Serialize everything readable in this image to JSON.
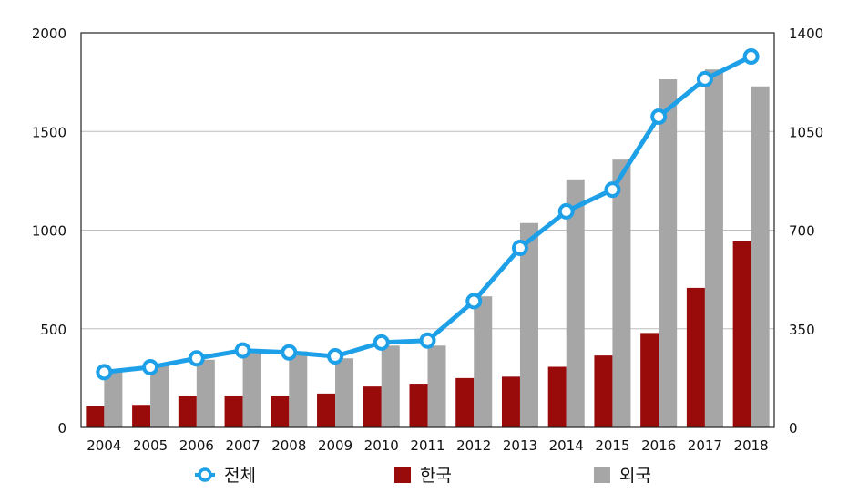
{
  "chart_data": {
    "type": "bar+line",
    "title": "",
    "xlabel": "",
    "ylabel": "",
    "categories": [
      "2004",
      "2005",
      "2006",
      "2007",
      "2008",
      "2009",
      "2010",
      "2011",
      "2012",
      "2013",
      "2014",
      "2015",
      "2016",
      "2017",
      "2018"
    ],
    "left_axis": {
      "ylim": [
        0,
        2000
      ],
      "ticks": [
        "0",
        "500",
        "1000",
        "1500",
        "2000"
      ]
    },
    "right_axis": {
      "ylim": [
        0,
        1400
      ],
      "ticks": [
        "0",
        "350",
        "700",
        "1050",
        "1400"
      ]
    },
    "series": [
      {
        "name": "전체",
        "type": "line",
        "axis": "left",
        "color": "#1ea0e8",
        "values": [
          280,
          305,
          350,
          390,
          380,
          360,
          430,
          440,
          640,
          910,
          1095,
          1205,
          1575,
          1765,
          1880
        ]
      },
      {
        "name": "한국",
        "type": "bar",
        "axis": "right",
        "color": "#990a0a",
        "values": [
          75,
          80,
          110,
          110,
          110,
          120,
          145,
          155,
          175,
          180,
          215,
          255,
          335,
          495,
          660
        ]
      },
      {
        "name": "외국",
        "type": "bar",
        "axis": "right",
        "color": "#a6a6a6",
        "values": [
          200,
          225,
          240,
          270,
          270,
          245,
          290,
          290,
          465,
          725,
          880,
          950,
          1235,
          1270,
          1210
        ]
      }
    ],
    "legend_position": "bottom",
    "grid": true
  }
}
